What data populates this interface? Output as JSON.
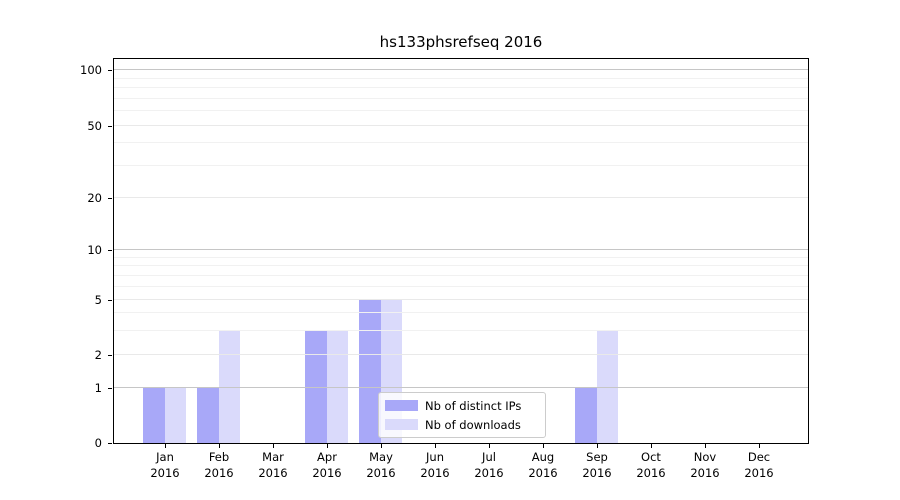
{
  "title": "hs133phsrefseq 2016",
  "legend": {
    "entries": [
      {
        "label": "Nb of distinct IPs",
        "color": "#a8a8f8"
      },
      {
        "label": "Nb of downloads",
        "color": "#dadafb"
      }
    ]
  },
  "chart_data": {
    "type": "bar",
    "title": "hs133phsrefseq 2016",
    "categories": [
      "Jan 2016",
      "Feb 2016",
      "Mar 2016",
      "Apr 2016",
      "May 2016",
      "Jun 2016",
      "Jul 2016",
      "Aug 2016",
      "Sep 2016",
      "Oct 2016",
      "Nov 2016",
      "Dec 2016"
    ],
    "series": [
      {
        "name": "Nb of distinct IPs",
        "color": "#a8a8f8",
        "values": [
          1,
          1,
          0,
          3,
          5,
          0,
          0,
          0,
          1,
          0,
          0,
          0
        ]
      },
      {
        "name": "Nb of downloads",
        "color": "#dadafb",
        "values": [
          1,
          3,
          0,
          3,
          5,
          0,
          0,
          0,
          3,
          0,
          0,
          0
        ]
      }
    ],
    "xlabel": "",
    "ylabel": "",
    "yticks": [
      0,
      1,
      2,
      5,
      10,
      20,
      50,
      100
    ],
    "minor_gridline_values": [
      3,
      4,
      6,
      7,
      8,
      9,
      30,
      40,
      60,
      70,
      80,
      90
    ],
    "ylim": [
      0,
      115
    ],
    "y_scale": "custom-log-like (0 linear to 1, then compressed log)",
    "grid": true,
    "legend_position": "lower center-right inside plot",
    "grid_colors": {
      "decade": "#c6c6c6",
      "major": "#e9e9e9",
      "minor": "#f1f1f1"
    }
  }
}
